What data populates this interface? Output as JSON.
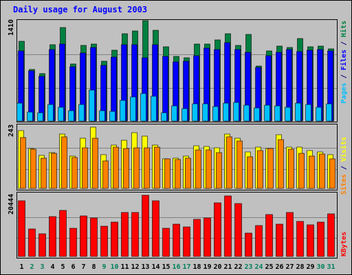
{
  "chart_data": {
    "type": "bar",
    "title": "Daily usage for August 2003",
    "categories": [
      "1",
      "2",
      "3",
      "4",
      "5",
      "6",
      "7",
      "8",
      "9",
      "10",
      "11",
      "12",
      "13",
      "14",
      "15",
      "16",
      "17",
      "18",
      "19",
      "20",
      "21",
      "22",
      "23",
      "24",
      "25",
      "26",
      "27",
      "28",
      "29",
      "30",
      "31"
    ],
    "weekend_days": [
      "2",
      "3",
      "9",
      "10",
      "16",
      "17",
      "23",
      "24",
      "30",
      "31"
    ],
    "panels": [
      {
        "id": "hits",
        "ylim": [
          0,
          1410
        ],
        "ymax_label": "1410",
        "right_labels": [
          {
            "text": "Pages",
            "color": "#00c0ff"
          },
          {
            "text": " / ",
            "color": "#000080"
          },
          {
            "text": "Files",
            "color": "#0000ff"
          },
          {
            "text": " / ",
            "color": "#000080"
          },
          {
            "text": "Hits",
            "color": "#008040"
          }
        ],
        "series": [
          {
            "key": "hits",
            "color": "#008040",
            "values": [
              1124,
              725,
              671,
              1073,
              1314,
              803,
              1063,
              1085,
              837,
              998,
              1229,
              1261,
              1410,
              1271,
              1040,
              903,
              886,
              1082,
              1082,
              1144,
              1226,
              1065,
              1218,
              776,
              983,
              1049,
              1031,
              1157,
              1040,
              1054,
              1014
            ]
          },
          {
            "key": "files",
            "color": "#0000ff",
            "values": [
              984,
              708,
              628,
              1006,
              1080,
              759,
              955,
              1033,
              785,
              896,
              1072,
              1073,
              885,
              1070,
              909,
              833,
              843,
              920,
              1025,
              1009,
              1099,
              1004,
              966,
              752,
              917,
              962,
              1004,
              974,
              991,
              1001,
              987
            ]
          },
          {
            "key": "pages",
            "color": "#00c0ff",
            "values": [
              250,
              121,
              119,
              236,
              193,
              147,
              229,
              436,
              147,
              131,
              286,
              335,
              391,
              349,
              119,
              216,
              170,
              243,
              237,
              207,
              251,
              261,
              218,
              181,
              220,
              213,
              192,
              252,
              235,
              196,
              241
            ]
          }
        ]
      },
      {
        "id": "visits",
        "ylim": [
          0,
          243
        ],
        "ymax_label": "243",
        "right_labels": [
          {
            "text": "Sites",
            "color": "#ff8000"
          },
          {
            "text": " / ",
            "color": "#000080"
          },
          {
            "text": "Visits",
            "color": "#ffff00"
          }
        ],
        "series": [
          {
            "key": "visits",
            "color": "#ffff00",
            "values": [
              228,
              159,
              130,
              143,
              215,
              127,
              199,
              243,
              133,
              172,
              190,
              220,
              207,
              172,
              118,
              119,
              128,
              169,
              167,
              160,
              215,
              199,
              144,
              165,
              159,
              212,
              165,
              163,
              149,
              144,
              134
            ]
          },
          {
            "key": "sites",
            "color": "#ff8000",
            "values": [
              201,
              155,
              120,
              138,
              206,
              124,
              160,
              200,
              108,
              164,
              157,
              160,
              162,
              163,
              117,
              116,
              121,
              153,
              154,
              141,
              206,
              189,
              126,
              150,
              157,
              193,
              156,
              138,
              128,
              136,
              118
            ]
          }
        ]
      },
      {
        "id": "kbytes",
        "ylim": [
          0,
          20444
        ],
        "ymax_label": "20444",
        "right_labels": [
          {
            "text": "KBytes",
            "color": "#ff0000"
          }
        ],
        "series": [
          {
            "key": "kbytes",
            "color": "#ff0000",
            "values": [
              18617,
              9171,
              7593,
              13317,
              15355,
              9369,
              13473,
              12882,
              10087,
              11527,
              14755,
              14728,
              20444,
              18583,
              9393,
              10697,
              9900,
              12449,
              12843,
              17855,
              20222,
              17695,
              7768,
              10286,
              14073,
              10823,
              14604,
              11674,
              10571,
              11454,
              14132
            ]
          }
        ]
      }
    ]
  }
}
